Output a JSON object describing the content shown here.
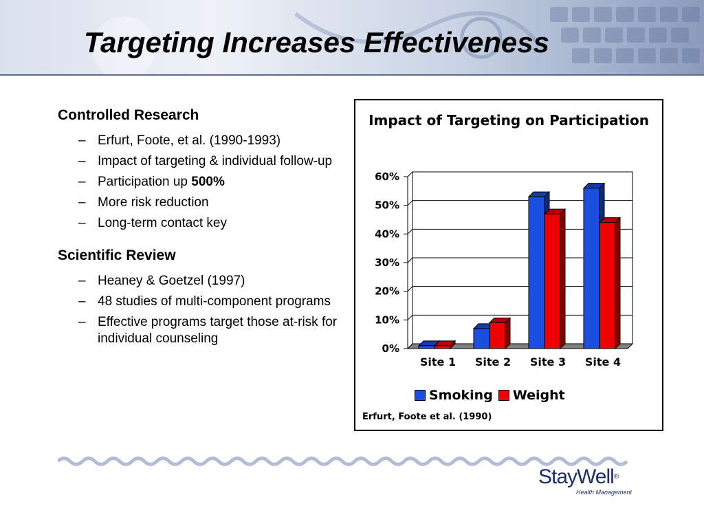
{
  "slide": {
    "title": "Targeting Increases Effectiveness",
    "sections": [
      {
        "heading": "Controlled Research",
        "bullets": [
          "Erfurt, Foote, et al. (1990-1993)",
          "Impact of targeting & individual follow-up",
          [
            "Participation up ",
            "500%"
          ],
          "More risk reduction",
          "Long-term contact key"
        ]
      },
      {
        "heading": "Scientific Review",
        "bullets": [
          "Heaney & Goetzel (1997)",
          "48 studies of multi-component programs",
          "Effective programs target those at-risk for individual counseling"
        ]
      }
    ],
    "logo": {
      "name": "StayWell",
      "reg": "®",
      "tagline": "Health Management"
    }
  },
  "chart_data": {
    "type": "bar",
    "title": "Impact of Targeting on Participation",
    "categories": [
      "Site 1",
      "Site 2",
      "Site 3",
      "Site 4"
    ],
    "series": [
      {
        "name": "Smoking",
        "values": [
          1,
          7,
          53,
          56
        ],
        "color": "#1a4fe0"
      },
      {
        "name": "Weight",
        "values": [
          1,
          9,
          47,
          44
        ],
        "color": "#ee0000"
      }
    ],
    "ylim": [
      0,
      60
    ],
    "yticks": [
      "0%",
      "10%",
      "20%",
      "30%",
      "40%",
      "50%",
      "60%"
    ],
    "xlabel": "",
    "ylabel": "",
    "grid": true,
    "three_d": true,
    "legend": "bottom",
    "source": "Erfurt, Foote et al. (1990)"
  }
}
